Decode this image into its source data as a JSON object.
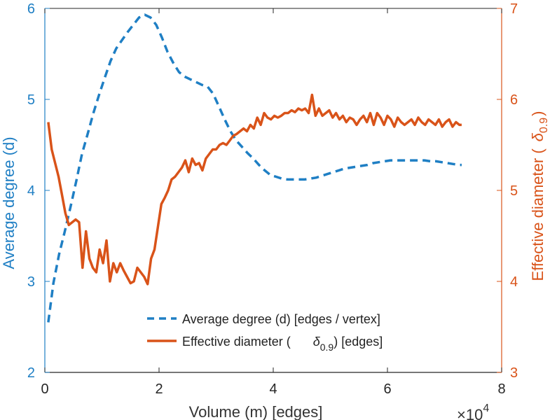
{
  "chart_data": {
    "type": "line",
    "xlabel": "Volume (m) [edges]",
    "x_exponent_label": "×10",
    "x_exponent_power": "4",
    "xlim": [
      0,
      80000
    ],
    "xticks": [
      0,
      20000,
      40000,
      60000,
      80000
    ],
    "xtick_labels": [
      "0",
      "2",
      "4",
      "6",
      "8"
    ],
    "y_left": {
      "label": "Average degree (d)",
      "lim": [
        2,
        6
      ],
      "ticks": [
        2,
        3,
        4,
        5,
        6
      ],
      "tick_labels": [
        "2",
        "3",
        "4",
        "5",
        "6"
      ],
      "color": "#1f7fc4"
    },
    "y_right": {
      "label_main": "Effective diameter (",
      "label_symbol": "δ",
      "label_sub": "0.9",
      "label_close": ")",
      "lim": [
        3,
        7
      ],
      "ticks": [
        3,
        4,
        5,
        6,
        7
      ],
      "tick_labels": [
        "3",
        "4",
        "5",
        "6",
        "7"
      ],
      "color": "#d95319"
    },
    "grid": false,
    "legend_position": "bottom-center",
    "series": [
      {
        "name": "Average degree (d) [edges / vertex]",
        "legend_label": "Average degree (d) [edges / vertex]",
        "axis": "left",
        "color": "#1f7fc4",
        "style": "dashed",
        "x": [
          600,
          1500,
          2500,
          3500,
          4500,
          5500,
          6500,
          7500,
          8500,
          9500,
          10500,
          11500,
          12500,
          13500,
          14500,
          15500,
          16500,
          17500,
          18500,
          19500,
          20500,
          21500,
          22500,
          23500,
          24500,
          25500,
          26500,
          27500,
          28500,
          29500,
          30500,
          31500,
          32500,
          33500,
          34500,
          35500,
          36500,
          37500,
          38500,
          39500,
          40500,
          41500,
          42500,
          43500,
          44500,
          45500,
          46500,
          47500,
          48500,
          49500,
          50500,
          51500,
          52500,
          53500,
          54500,
          55500,
          56500,
          57500,
          58500,
          59500,
          60500,
          61500,
          62500,
          63500,
          64500,
          65500,
          66500,
          67500,
          68500,
          69500,
          70500,
          71500,
          72500,
          73000
        ],
        "y": [
          2.55,
          2.98,
          3.3,
          3.55,
          3.82,
          4.1,
          4.4,
          4.62,
          4.85,
          5.05,
          5.24,
          5.42,
          5.56,
          5.65,
          5.74,
          5.82,
          5.9,
          5.93,
          5.9,
          5.82,
          5.68,
          5.52,
          5.4,
          5.3,
          5.25,
          5.22,
          5.19,
          5.16,
          5.14,
          5.06,
          4.92,
          4.78,
          4.65,
          4.55,
          4.48,
          4.41,
          4.35,
          4.28,
          4.22,
          4.17,
          4.15,
          4.13,
          4.12,
          4.12,
          4.12,
          4.12,
          4.13,
          4.14,
          4.16,
          4.18,
          4.2,
          4.22,
          4.24,
          4.25,
          4.26,
          4.27,
          4.28,
          4.3,
          4.31,
          4.32,
          4.33,
          4.33,
          4.33,
          4.33,
          4.33,
          4.33,
          4.33,
          4.32,
          4.32,
          4.31,
          4.3,
          4.29,
          4.28,
          4.28
        ]
      },
      {
        "name": "Effective diameter (δ0.9) [edges]",
        "legend_label_main": "Effective diameter (",
        "legend_label_symbol": "δ",
        "legend_label_sub": "0.9",
        "legend_label_close": ") [edges]",
        "axis": "right",
        "color": "#d95319",
        "style": "solid",
        "x": [
          600,
          1200,
          1800,
          2400,
          3000,
          3600,
          4200,
          4800,
          5400,
          6000,
          6600,
          7200,
          7800,
          8400,
          9000,
          9600,
          10200,
          10800,
          11400,
          12000,
          12600,
          13200,
          13800,
          14400,
          15000,
          15600,
          16200,
          16800,
          17400,
          18000,
          18600,
          19200,
          19800,
          20400,
          21000,
          21600,
          22200,
          22800,
          23400,
          24000,
          24600,
          25200,
          25800,
          26400,
          27000,
          27600,
          28200,
          28800,
          29400,
          30000,
          30600,
          31200,
          31800,
          32400,
          33000,
          33600,
          34200,
          34800,
          35400,
          36000,
          36600,
          37200,
          37800,
          38400,
          39000,
          39600,
          40200,
          40800,
          41400,
          42000,
          42600,
          43200,
          43800,
          44400,
          45000,
          45600,
          46200,
          46800,
          47400,
          48000,
          48600,
          49200,
          49800,
          50400,
          51000,
          51600,
          52200,
          52800,
          53400,
          54000,
          54600,
          55200,
          55800,
          56400,
          57000,
          57600,
          58200,
          58800,
          59400,
          60000,
          60600,
          61200,
          61800,
          62400,
          63000,
          63600,
          64200,
          64800,
          65400,
          66000,
          66600,
          67200,
          67800,
          68400,
          69000,
          69600,
          70200,
          70800,
          71400,
          72000,
          72600,
          73000
        ],
        "y": [
          5.75,
          5.45,
          5.3,
          5.15,
          4.95,
          4.75,
          4.62,
          4.65,
          4.68,
          4.65,
          4.15,
          4.55,
          4.25,
          4.15,
          4.1,
          4.35,
          4.2,
          4.45,
          4.0,
          4.2,
          4.1,
          4.2,
          4.12,
          4.05,
          3.98,
          4.0,
          4.15,
          4.1,
          4.05,
          3.97,
          4.25,
          4.35,
          4.6,
          4.85,
          4.92,
          5.0,
          5.12,
          5.15,
          5.2,
          5.25,
          5.33,
          5.2,
          5.35,
          5.28,
          5.3,
          5.22,
          5.35,
          5.4,
          5.45,
          5.45,
          5.5,
          5.52,
          5.5,
          5.55,
          5.6,
          5.62,
          5.65,
          5.68,
          5.65,
          5.72,
          5.68,
          5.8,
          5.72,
          5.85,
          5.8,
          5.78,
          5.82,
          5.8,
          5.82,
          5.85,
          5.85,
          5.88,
          5.86,
          5.9,
          5.88,
          5.9,
          5.85,
          6.05,
          5.82,
          5.9,
          5.82,
          5.85,
          5.88,
          5.8,
          5.85,
          5.78,
          5.82,
          5.75,
          5.8,
          5.78,
          5.72,
          5.78,
          5.82,
          5.75,
          5.85,
          5.72,
          5.85,
          5.8,
          5.72,
          5.82,
          5.78,
          5.7,
          5.8,
          5.75,
          5.72,
          5.75,
          5.78,
          5.72,
          5.8,
          5.75,
          5.72,
          5.78,
          5.75,
          5.72,
          5.78,
          5.7,
          5.75,
          5.78,
          5.7,
          5.75,
          5.72,
          5.72
        ]
      }
    ]
  }
}
